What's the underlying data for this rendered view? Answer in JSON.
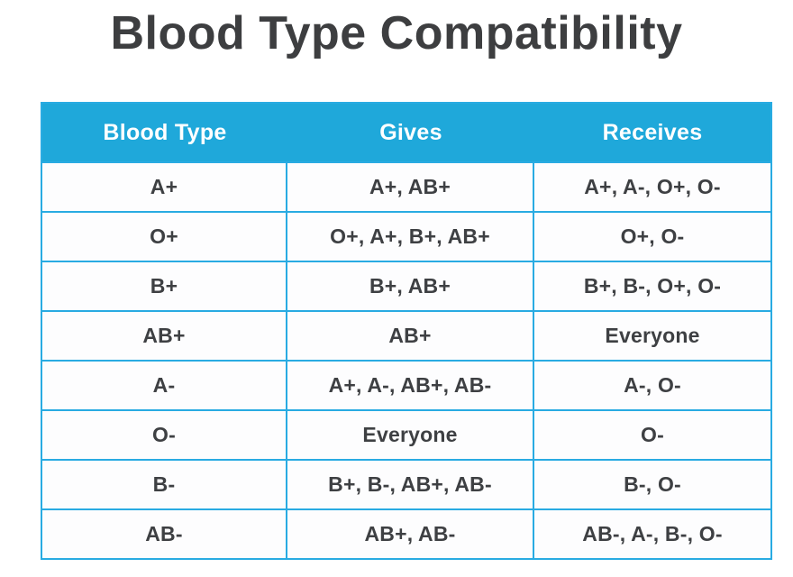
{
  "chart_data": {
    "type": "table",
    "title": "Blood Type Compatibility",
    "columns": [
      "Blood Type",
      "Gives",
      "Receives"
    ],
    "rows": [
      [
        "A+",
        "A+, AB+",
        "A+, A-, O+, O-"
      ],
      [
        "O+",
        "O+, A+, B+, AB+",
        "O+, O-"
      ],
      [
        "B+",
        "B+, AB+",
        "B+, B-, O+, O-"
      ],
      [
        "AB+",
        "AB+",
        "Everyone"
      ],
      [
        "A-",
        "A+, A-, AB+, AB-",
        "A-, O-"
      ],
      [
        "O-",
        "Everyone",
        "O-"
      ],
      [
        "B-",
        "B+, B-, AB+, AB-",
        "B-, O-"
      ],
      [
        "AB-",
        "AB+, AB-",
        "AB-, A-, B-, O-"
      ]
    ]
  },
  "colors": {
    "header_bg": "#1fa8da",
    "grid_line": "#29abe2",
    "header_text": "#ffffff",
    "cell_text": "#3e4043",
    "title_text": "#3d3e40",
    "cell_bg": "#fdfdfe"
  }
}
